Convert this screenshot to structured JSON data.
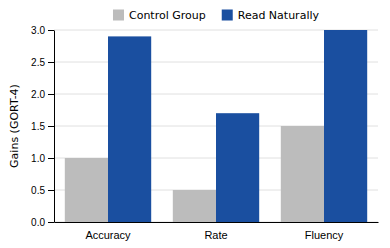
{
  "chart_data": {
    "type": "bar",
    "categories": [
      "Accuracy",
      "Rate",
      "Fluency"
    ],
    "series": [
      {
        "name": "Control Group",
        "color": "#bcbcbc",
        "values": [
          1.0,
          0.5,
          1.5
        ]
      },
      {
        "name": "Read Naturally",
        "color": "#1a4fa0",
        "values": [
          2.9,
          1.7,
          3.0
        ]
      }
    ],
    "ylabel": "Gains (GORT-4)",
    "ylim": [
      0.0,
      3.0
    ],
    "yticks": [
      {
        "value": 0.0,
        "label": "0.0"
      },
      0.5,
      {
        "value": 1.0,
        "label": "1.0"
      },
      1.5,
      {
        "value": 2.0,
        "label": "2.0"
      },
      2.5,
      {
        "value": 3.0,
        "label": "3.0"
      }
    ],
    "grid": true,
    "legend": "top"
  }
}
